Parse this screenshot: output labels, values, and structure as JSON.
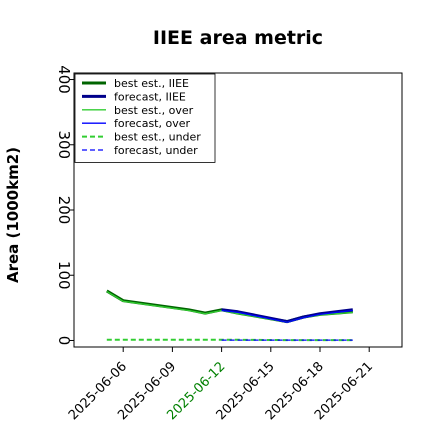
{
  "chart_data": {
    "type": "line",
    "title": "IIEE area metric",
    "xlabel": "",
    "ylabel": "Area (1000km2)",
    "xlim": [
      "2025-06-03",
      "2025-06-23"
    ],
    "ylim": [
      -10,
      410
    ],
    "yticks": [
      0,
      100,
      200,
      300,
      400
    ],
    "xticks": [
      "2025-06-06",
      "2025-06-09",
      "2025-06-12",
      "2025-06-15",
      "2025-06-18",
      "2025-06-21"
    ],
    "xtick_colors": [
      "#000000",
      "#000000",
      "#008000",
      "#000000",
      "#000000",
      "#000000"
    ],
    "grid": false,
    "legend_position": "top-left",
    "series": [
      {
        "name": "best est., IIEE",
        "color": "#006400",
        "style": "solid",
        "width": 3,
        "x": [
          "2025-06-05",
          "2025-06-06",
          "2025-06-10",
          "2025-06-11",
          "2025-06-12",
          "2025-06-13",
          "2025-06-16",
          "2025-06-17",
          "2025-06-18",
          "2025-06-19",
          "2025-06-20"
        ],
        "y": [
          76,
          61,
          47,
          42,
          47,
          42,
          29,
          36,
          40,
          42,
          44
        ]
      },
      {
        "name": "forecast, IIEE",
        "color": "#00008b",
        "style": "solid",
        "width": 3,
        "x": [
          "2025-06-12",
          "2025-06-13",
          "2025-06-16",
          "2025-06-17",
          "2025-06-18",
          "2025-06-19",
          "2025-06-20"
        ],
        "y": [
          47,
          44,
          29,
          36,
          41,
          44,
          47
        ]
      },
      {
        "name": "best est., over",
        "color": "#32cd32",
        "style": "solid",
        "width": 1.3,
        "x": [
          "2025-06-05",
          "2025-06-06",
          "2025-06-10",
          "2025-06-11",
          "2025-06-12",
          "2025-06-13",
          "2025-06-16",
          "2025-06-17",
          "2025-06-18",
          "2025-06-19",
          "2025-06-20"
        ],
        "y": [
          75,
          60,
          46,
          41,
          46,
          41,
          28,
          35,
          39,
          41,
          43
        ]
      },
      {
        "name": "forecast, over",
        "color": "#0000ff",
        "style": "solid",
        "width": 1.3,
        "x": [
          "2025-06-12",
          "2025-06-13",
          "2025-06-16",
          "2025-06-17",
          "2025-06-18",
          "2025-06-19",
          "2025-06-20"
        ],
        "y": [
          46,
          43,
          28,
          35,
          40,
          43,
          46
        ]
      },
      {
        "name": "best est., under",
        "color": "#32cd32",
        "style": "dashed",
        "width": 2,
        "x": [
          "2025-06-05",
          "2025-06-06",
          "2025-06-10",
          "2025-06-11",
          "2025-06-12",
          "2025-06-13",
          "2025-06-16",
          "2025-06-17",
          "2025-06-18",
          "2025-06-19",
          "2025-06-20"
        ],
        "y": [
          1,
          1,
          1,
          1,
          1,
          1,
          0.5,
          0.5,
          0.5,
          0.5,
          0.5
        ]
      },
      {
        "name": "forecast, under",
        "color": "#0000ff",
        "style": "dashed",
        "width": 1.3,
        "x": [
          "2025-06-12",
          "2025-06-13",
          "2025-06-16",
          "2025-06-17",
          "2025-06-18",
          "2025-06-19",
          "2025-06-20"
        ],
        "y": [
          0.5,
          0.5,
          0.5,
          0.5,
          0.5,
          0.5,
          0.5
        ]
      }
    ]
  }
}
